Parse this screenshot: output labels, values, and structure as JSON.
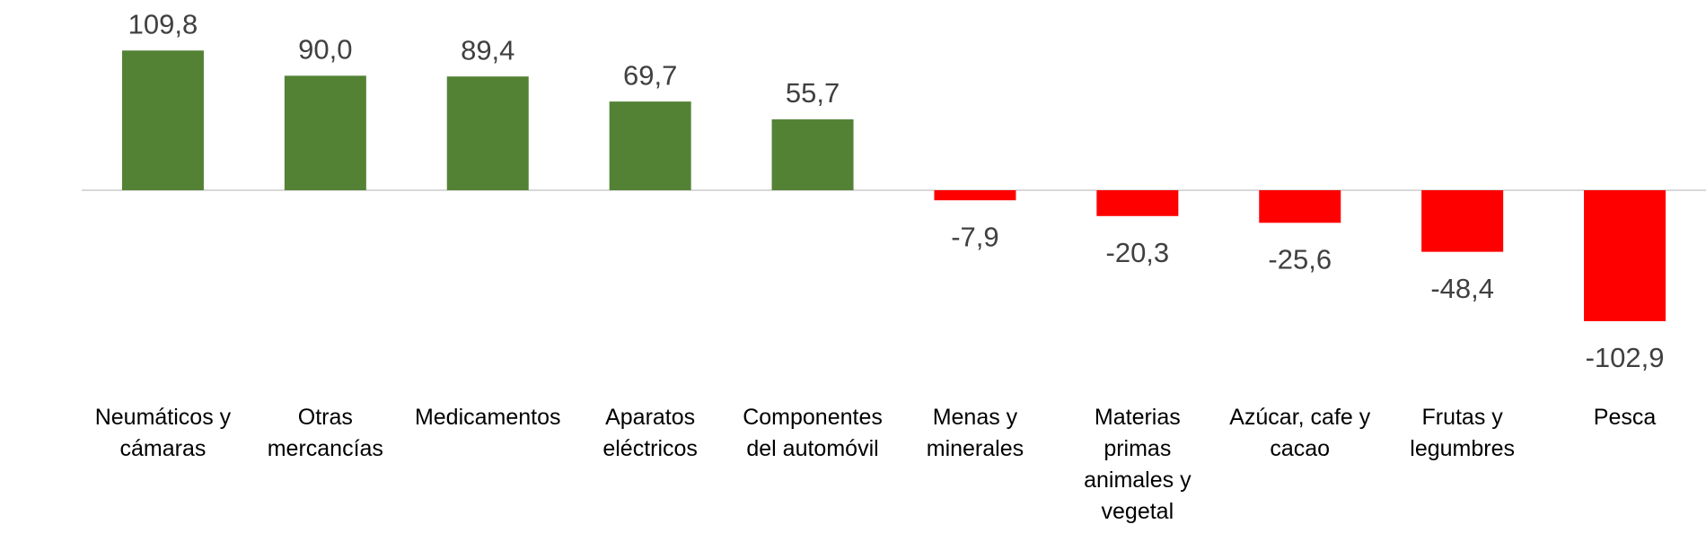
{
  "chart_data": {
    "type": "bar",
    "categories": [
      "Neumáticos y cámaras",
      "Otras mercancías",
      "Medicamentos",
      "Aparatos eléctricos",
      "Componentes del automóvil",
      "Menas y minerales",
      "Materias primas animales y vegetal",
      "Azúcar, cafe y cacao",
      "Frutas y legumbres",
      "Pesca"
    ],
    "values": [
      109.8,
      90.0,
      89.4,
      69.7,
      55.7,
      -7.9,
      -20.3,
      -25.6,
      -48.4,
      -102.9
    ],
    "value_labels": [
      "109,8",
      "90,0",
      "89,4",
      "69,7",
      "55,7",
      "-7,9",
      "-20,3",
      "-25,6",
      "-48,4",
      "-102,9"
    ],
    "color_positive": "#548235",
    "color_negative": "#ff0000"
  }
}
